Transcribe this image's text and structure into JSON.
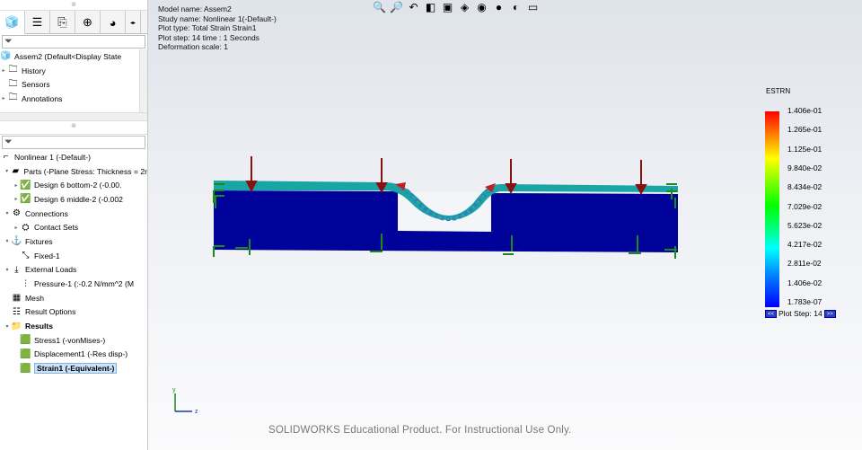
{
  "feature_tree_top": {
    "tabs": [
      "feature-manager",
      "property-manager",
      "configuration-manager",
      "dimxpert",
      "display-manager"
    ],
    "root": "Assem2  (Default<Display State",
    "items": [
      "History",
      "Sensors",
      "Annotations"
    ]
  },
  "study_tree": {
    "root": "Nonlinear 1 (-Default-)",
    "items": [
      {
        "label": "Parts (-Plane Stress: Thickness = 2r",
        "level": 1,
        "exp": "▾",
        "icon": "parts-icon"
      },
      {
        "label": "Design 6 bottom-2 (-0.00.",
        "level": 2,
        "exp": "▸",
        "icon": "part-icon"
      },
      {
        "label": "Design 6 middle-2 (-0.002",
        "level": 2,
        "exp": "▸",
        "icon": "part-icon"
      },
      {
        "label": "Connections",
        "level": 1,
        "exp": "▾",
        "icon": "connections-icon"
      },
      {
        "label": "Contact Sets",
        "level": 2,
        "exp": "▸",
        "icon": "contact-sets-icon"
      },
      {
        "label": "Fixtures",
        "level": 1,
        "exp": "▾",
        "icon": "fixtures-icon"
      },
      {
        "label": "Fixed-1",
        "level": 2,
        "exp": "",
        "icon": "fixed-icon"
      },
      {
        "label": "External Loads",
        "level": 1,
        "exp": "▾",
        "icon": "external-loads-icon"
      },
      {
        "label": "Pressure-1 (:-0.2 N/mm^2 (M",
        "level": 2,
        "exp": "",
        "icon": "pressure-icon"
      },
      {
        "label": "Mesh",
        "level": 1,
        "exp": "",
        "icon": "mesh-icon"
      },
      {
        "label": "Result Options",
        "level": 1,
        "exp": "",
        "icon": "result-options-icon"
      },
      {
        "label": "Results",
        "level": 1,
        "exp": "▾",
        "icon": "results-folder-icon",
        "bold": true
      },
      {
        "label": "Stress1 (-vonMises-)",
        "level": 2,
        "exp": "",
        "icon": "plot-icon"
      },
      {
        "label": "Displacement1 (-Res disp-)",
        "level": 2,
        "exp": "",
        "icon": "plot-icon"
      },
      {
        "label": "Strain1 (-Equivalent-)",
        "level": 2,
        "exp": "",
        "icon": "plot-icon",
        "selected": true
      }
    ]
  },
  "info": {
    "model": "Model name: Assem2",
    "study": "Study name: Nonlinear 1(-Default-)",
    "plot_type": "Plot type: Total Strain Strain1",
    "plot_step": "Plot step: 14   time : 1 Seconds",
    "deformation": "Deformation scale: 1"
  },
  "legend": {
    "title": "ESTRN",
    "labels": [
      "1.406e-01",
      "1.265e-01",
      "1.125e-01",
      "9.840e-02",
      "8.434e-02",
      "7.029e-02",
      "5.623e-02",
      "4.217e-02",
      "2.811e-02",
      "1.406e-02",
      "1.783e-07"
    ],
    "prev": "<<",
    "next": ">>",
    "plot_step_label": "Plot Step: 14"
  },
  "triad": {
    "y": "y",
    "x": "z"
  },
  "watermark": "SOLIDWORKS Educational Product. For Instructional Use Only.",
  "colors": {
    "body": "#00039a",
    "top_layer": "#1aa5a5",
    "load_arrow": "#8b1010",
    "fixture_arrow": "#1a8a1a"
  }
}
